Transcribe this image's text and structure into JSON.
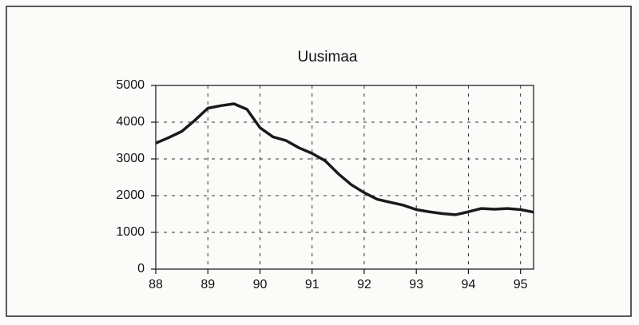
{
  "chart_data": {
    "type": "line",
    "title": "Uusimaa",
    "x": [
      88,
      88.25,
      88.5,
      88.75,
      89,
      89.25,
      89.5,
      89.75,
      90,
      90.25,
      90.5,
      90.75,
      91,
      91.25,
      91.5,
      91.75,
      92,
      92.25,
      92.5,
      92.75,
      93,
      93.25,
      93.5,
      93.75,
      94,
      94.25,
      94.5,
      94.75,
      95,
      95.25
    ],
    "series": [
      {
        "name": "Uusimaa",
        "color": "#1a1a1a",
        "values": [
          3430,
          3580,
          3750,
          4050,
          4380,
          4450,
          4500,
          4350,
          3850,
          3600,
          3500,
          3300,
          3150,
          2950,
          2600,
          2300,
          2080,
          1900,
          1820,
          1740,
          1620,
          1560,
          1510,
          1480,
          1560,
          1650,
          1630,
          1650,
          1620,
          1550
        ]
      }
    ],
    "xlim": [
      88,
      95.25
    ],
    "xticks": [
      88,
      89,
      90,
      91,
      92,
      93,
      94,
      95
    ],
    "ylim": [
      0,
      5000
    ],
    "yticks": [
      0,
      1000,
      2000,
      3000,
      4000,
      5000
    ],
    "grid": true
  }
}
